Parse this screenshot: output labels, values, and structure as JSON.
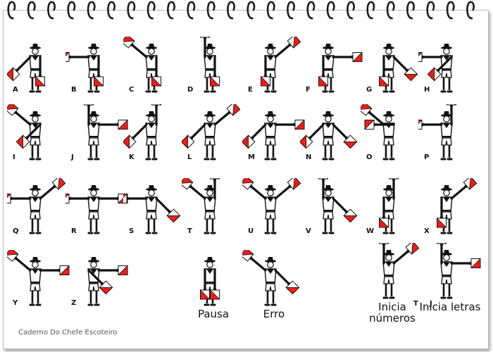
{
  "credit": "Caderno Do Chefe Escoteiro",
  "colors": {
    "flag_red": "#e8201a",
    "flag_white": "#ffffff",
    "ink": "#111111",
    "paper": "#ffffff"
  },
  "binding": {
    "rings": 24,
    "icon": "spiral-binding-icon"
  },
  "signals": [
    {
      "label": "A",
      "left": "low-left",
      "right": "down"
    },
    {
      "label": "B",
      "left": "out-left",
      "right": "down"
    },
    {
      "label": "C",
      "left": "high-left",
      "right": "down"
    },
    {
      "label": "D",
      "left": "up",
      "right": "down"
    },
    {
      "label": "E",
      "left": "down",
      "right": "high-right"
    },
    {
      "label": "F",
      "left": "down",
      "right": "out-right"
    },
    {
      "label": "G",
      "left": "down",
      "right": "low-right"
    },
    {
      "label": "H",
      "left": "out-left",
      "right": "low-left"
    },
    {
      "label": "I",
      "left": "high-left",
      "right": "low-left"
    },
    {
      "label": "J",
      "left": "up",
      "right": "out-right"
    },
    {
      "label": "K",
      "left": "low-left",
      "right": "up"
    },
    {
      "label": "L",
      "left": "low-left",
      "right": "high-right"
    },
    {
      "label": "M",
      "left": "low-left",
      "right": "out-right"
    },
    {
      "label": "N",
      "left": "low-left",
      "right": "low-right"
    },
    {
      "label": "O",
      "left": "high-left",
      "right": "out-left"
    },
    {
      "label": "P",
      "left": "out-left",
      "right": "up"
    },
    {
      "label": "Q",
      "left": "out-left",
      "right": "high-right"
    },
    {
      "label": "R",
      "left": "out-left",
      "right": "out-right"
    },
    {
      "label": "S",
      "left": "out-left",
      "right": "low-right"
    },
    {
      "label": "T",
      "left": "high-left",
      "right": "up"
    },
    {
      "label": "U",
      "left": "high-left",
      "right": "high-right"
    },
    {
      "label": "V",
      "left": "up",
      "right": "low-right"
    },
    {
      "label": "W",
      "left": "down",
      "right": "up"
    },
    {
      "label": "X",
      "left": "down",
      "right": "high-right"
    },
    {
      "label": "Y",
      "left": "high-left",
      "right": "out-right"
    },
    {
      "label": "Z",
      "left": "low-right",
      "right": "out-right"
    },
    {
      "label": "Pausa",
      "left": "down",
      "right": "down"
    },
    {
      "label": "Erro",
      "left": "high-left",
      "right": "low-right"
    },
    {
      "label": "Inicia números",
      "left": "up",
      "right": "high-right"
    },
    {
      "label": "Inicia letras",
      "left": "up",
      "right": "out-right"
    }
  ],
  "corner_letters": {
    "first": "T",
    "second": "J"
  }
}
